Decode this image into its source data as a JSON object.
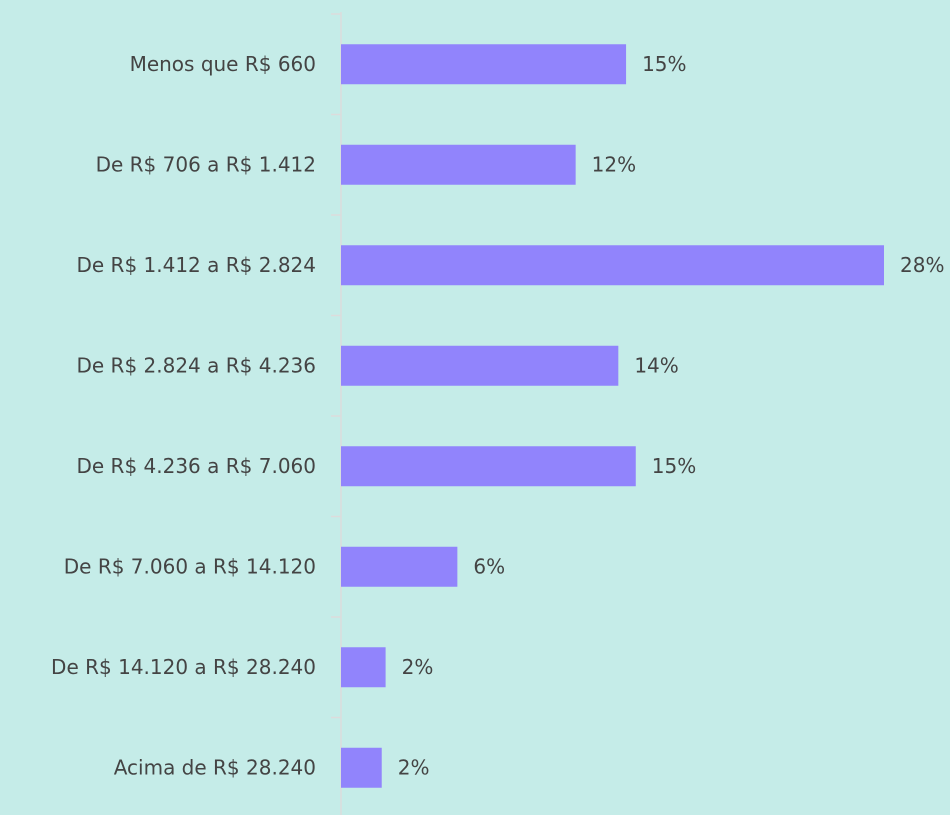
{
  "chart_data": {
    "type": "barh",
    "categories": [
      "Menos que R$ 660",
      "De R$ 706 a R$ 1.412",
      "De R$ 1.412 a R$ 2.824",
      "De R$ 2.824 a R$ 4.236",
      "De R$ 4.236 a R$ 7.060",
      "De R$ 7.060 a R$ 14.120",
      "De R$ 14.120 a R$ 28.240",
      "Acima de R$ 28.240"
    ],
    "values": [
      14.7,
      12.1,
      28,
      14.3,
      15.2,
      6,
      2.3,
      2.1
    ],
    "value_labels": [
      "15%",
      "12%",
      "28%",
      "14%",
      "15%",
      "6%",
      "2%",
      "2%"
    ],
    "color": "#9184fc"
  }
}
